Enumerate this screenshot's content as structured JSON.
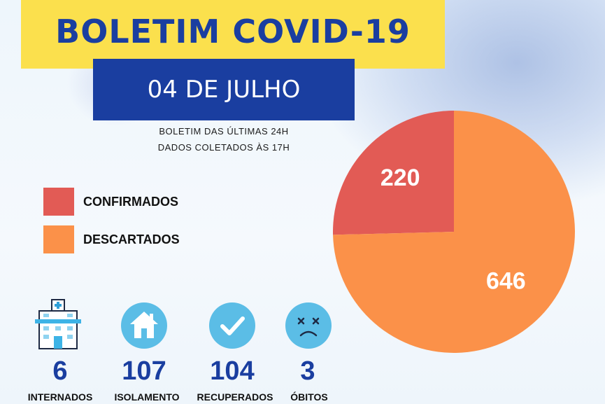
{
  "header": {
    "title": "BOLETIM COVID-19",
    "date": "04 DE JULHO",
    "subtitle_line1": "BOLETIM DAS ÚLTIMAS 24H",
    "subtitle_line2": "DADOS COLETADOS ÀS  17H"
  },
  "colors": {
    "title_band": "#fbe04d",
    "title_text": "#1a3ea0",
    "date_box": "#1a3ea0",
    "icon_circle": "#5bbde6"
  },
  "chart_data": {
    "type": "pie",
    "slices": [
      {
        "label": "CONFIRMADOS",
        "value": 220,
        "color": "#e25b55"
      },
      {
        "label": "DESCARTADOS",
        "value": 646,
        "color": "#fb9149"
      }
    ],
    "legend_position": "left"
  },
  "stats": [
    {
      "value": "6",
      "label": "INTERNADOS",
      "icon": "hospital-icon"
    },
    {
      "value": "107",
      "label": "ISOLAMENTO",
      "icon": "house-icon"
    },
    {
      "value": "104",
      "label": "RECUPERADOS",
      "icon": "checkmark-icon"
    },
    {
      "value": "3",
      "label": "ÓBITOS",
      "icon": "sad-face-icon"
    }
  ]
}
